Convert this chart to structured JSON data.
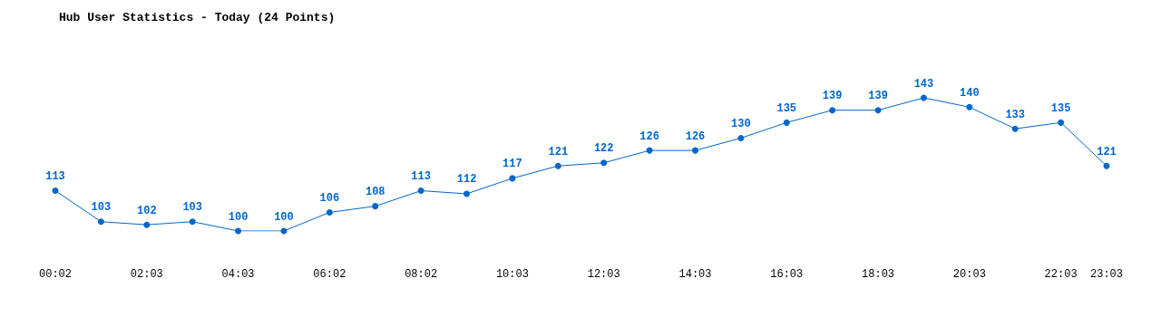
{
  "chart_data": {
    "type": "line",
    "title": "Hub User Statistics - Today (24 Points)",
    "categories": [
      "00:02",
      null,
      "02:03",
      null,
      "04:03",
      null,
      "06:02",
      null,
      "08:02",
      null,
      "10:03",
      null,
      "12:03",
      null,
      "14:03",
      null,
      "16:03",
      null,
      "18:03",
      null,
      "20:03",
      null,
      "22:03",
      "23:03"
    ],
    "values": [
      113,
      103,
      102,
      103,
      100,
      100,
      106,
      108,
      113,
      112,
      117,
      121,
      122,
      126,
      126,
      130,
      135,
      139,
      139,
      143,
      140,
      133,
      135,
      121
    ],
    "color": "#0066cc",
    "data_labels": true,
    "marker": "circle",
    "grid": false
  }
}
